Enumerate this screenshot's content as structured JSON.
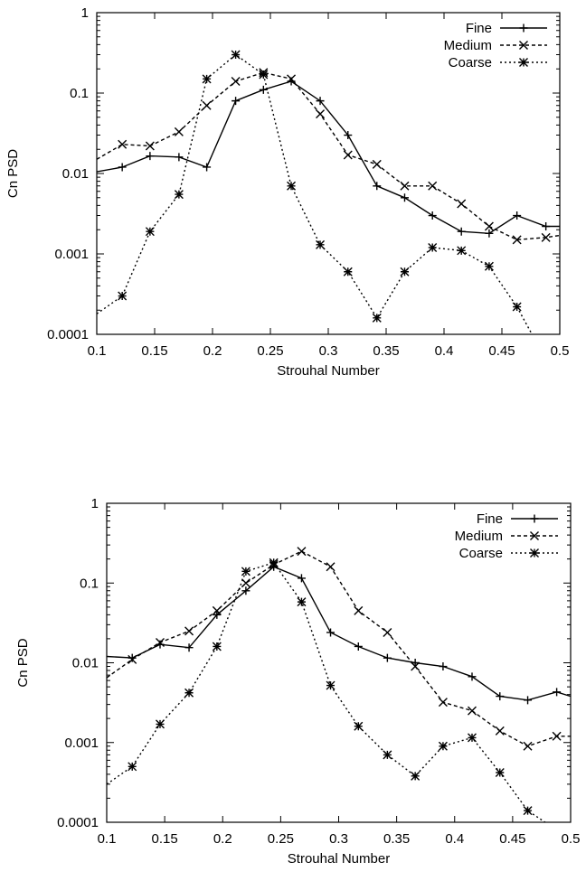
{
  "chart_data": [
    {
      "type": "line",
      "xlabel": "Strouhal Number",
      "ylabel": "Cn PSD",
      "xlim": [
        0.1,
        0.5
      ],
      "ylim": [
        0.0001,
        1
      ],
      "yscale": "log",
      "legend": "top-right",
      "xticks": [
        "0.1",
        "0.15",
        "0.2",
        "0.25",
        "0.3",
        "0.35",
        "0.4",
        "0.45",
        "0.5"
      ],
      "yticks": [
        "0.0001",
        "0.001",
        "0.01",
        "0.1",
        "1"
      ],
      "series": [
        {
          "name": "Fine",
          "style": "solid",
          "marker": "plus",
          "x": [
            0.1,
            0.122,
            0.146,
            0.171,
            0.195,
            0.22,
            0.244,
            0.268,
            0.293,
            0.317,
            0.342,
            0.366,
            0.39,
            0.415,
            0.439,
            0.463,
            0.488,
            0.5
          ],
          "y": [
            0.0105,
            0.012,
            0.0165,
            0.016,
            0.012,
            0.08,
            0.11,
            0.14,
            0.08,
            0.03,
            0.007,
            0.005,
            0.003,
            0.0019,
            0.0018,
            0.003,
            0.0022,
            0.0022
          ]
        },
        {
          "name": "Medium",
          "style": "dashed",
          "marker": "x",
          "x": [
            0.1,
            0.122,
            0.146,
            0.171,
            0.195,
            0.22,
            0.244,
            0.268,
            0.293,
            0.317,
            0.342,
            0.366,
            0.39,
            0.415,
            0.439,
            0.463,
            0.488,
            0.5
          ],
          "y": [
            0.015,
            0.023,
            0.022,
            0.033,
            0.07,
            0.14,
            0.18,
            0.15,
            0.055,
            0.017,
            0.013,
            0.007,
            0.007,
            0.0042,
            0.0022,
            0.0015,
            0.0016,
            0.0017
          ]
        },
        {
          "name": "Coarse",
          "style": "dotted",
          "marker": "star",
          "x": [
            0.1,
            0.122,
            0.146,
            0.171,
            0.195,
            0.22,
            0.244,
            0.268,
            0.293,
            0.317,
            0.342,
            0.366,
            0.39,
            0.415,
            0.439,
            0.463,
            0.476
          ],
          "y": [
            0.00018,
            0.0003,
            0.0019,
            0.0055,
            0.15,
            0.3,
            0.17,
            0.007,
            0.0013,
            0.0006,
            0.00016,
            0.0006,
            0.0012,
            0.0011,
            0.0007,
            0.00022,
            0.0001
          ]
        }
      ]
    },
    {
      "type": "line",
      "xlabel": "Strouhal Number",
      "ylabel": "Cn PSD",
      "xlim": [
        0.1,
        0.5
      ],
      "ylim": [
        0.0001,
        1
      ],
      "yscale": "log",
      "legend": "top-right",
      "xticks": [
        "0.1",
        "0.15",
        "0.2",
        "0.25",
        "0.3",
        "0.35",
        "0.4",
        "0.45",
        "0.5"
      ],
      "yticks": [
        "0.0001",
        "0.001",
        "0.01",
        "0.1",
        "1"
      ],
      "series": [
        {
          "name": "Fine",
          "style": "solid",
          "marker": "plus",
          "x": [
            0.1,
            0.122,
            0.146,
            0.171,
            0.195,
            0.22,
            0.244,
            0.268,
            0.293,
            0.317,
            0.342,
            0.366,
            0.39,
            0.415,
            0.439,
            0.463,
            0.488,
            0.5
          ],
          "y": [
            0.012,
            0.0115,
            0.017,
            0.0155,
            0.04,
            0.08,
            0.16,
            0.115,
            0.024,
            0.016,
            0.0115,
            0.01,
            0.009,
            0.0067,
            0.0038,
            0.0034,
            0.0043,
            0.0038
          ]
        },
        {
          "name": "Medium",
          "style": "dashed",
          "marker": "x",
          "x": [
            0.1,
            0.122,
            0.146,
            0.171,
            0.195,
            0.22,
            0.244,
            0.268,
            0.293,
            0.317,
            0.342,
            0.366,
            0.39,
            0.415,
            0.439,
            0.463,
            0.488,
            0.5
          ],
          "y": [
            0.0065,
            0.011,
            0.018,
            0.025,
            0.045,
            0.1,
            0.17,
            0.25,
            0.16,
            0.045,
            0.024,
            0.009,
            0.0032,
            0.0025,
            0.0014,
            0.0009,
            0.0012,
            0.0012
          ]
        },
        {
          "name": "Coarse",
          "style": "dotted",
          "marker": "star",
          "x": [
            0.1,
            0.122,
            0.146,
            0.171,
            0.195,
            0.22,
            0.244,
            0.268,
            0.293,
            0.317,
            0.342,
            0.366,
            0.39,
            0.415,
            0.439,
            0.463,
            0.478
          ],
          "y": [
            0.0003,
            0.0005,
            0.0017,
            0.0042,
            0.016,
            0.14,
            0.18,
            0.058,
            0.0052,
            0.0016,
            0.0007,
            0.00038,
            0.0009,
            0.00115,
            0.00042,
            0.00014,
            0.0001
          ]
        }
      ]
    }
  ]
}
